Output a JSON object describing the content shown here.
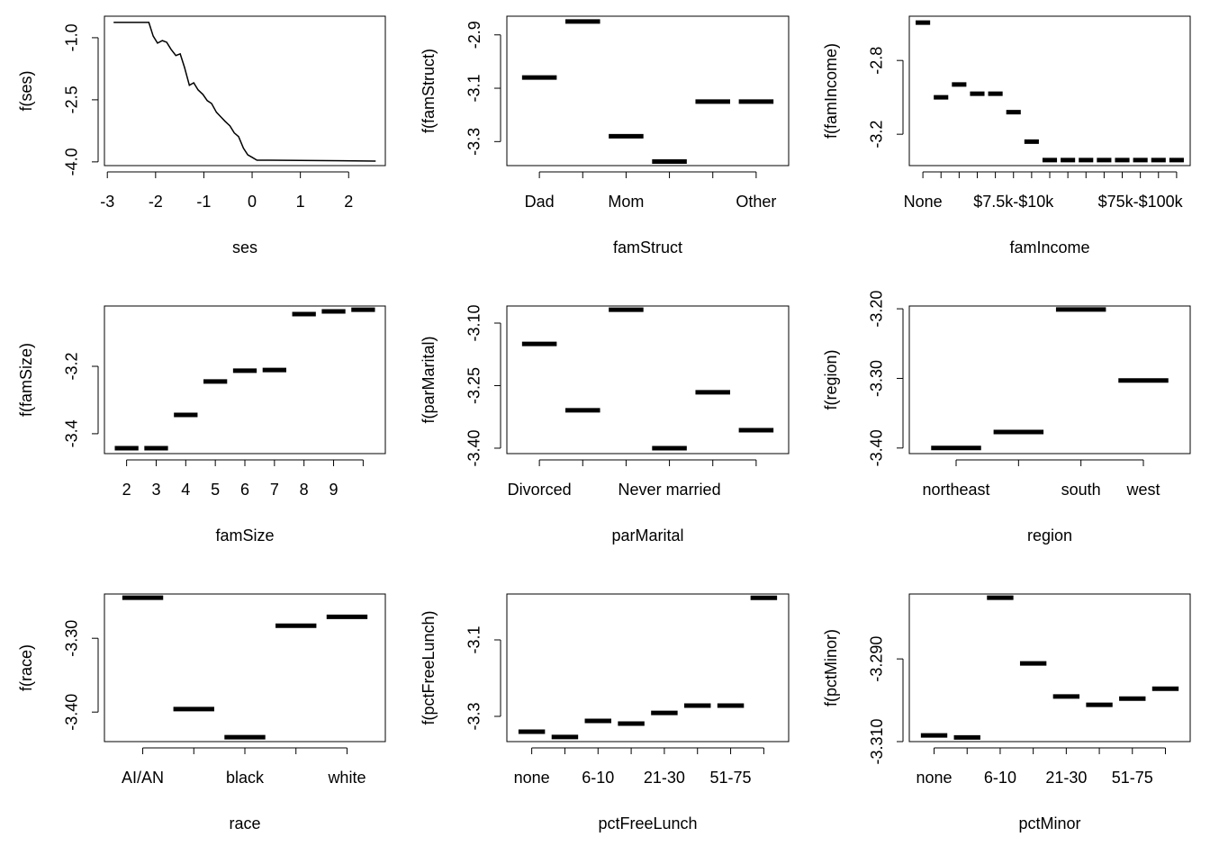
{
  "chart_data": [
    {
      "type": "line",
      "ylabel": "f(ses)",
      "xlabel": "ses",
      "xlim": [
        -3.06,
        2.76
      ],
      "xticks": [
        -3,
        -2,
        -1,
        0,
        1,
        2
      ],
      "ylim": [
        -4.09,
        -0.48
      ],
      "yticks": [
        {
          "value": -1,
          "label": "-1.0"
        },
        {
          "value": -2.5,
          "label": "-2.5"
        },
        {
          "value": -4,
          "label": "-4.0"
        }
      ],
      "color": "#000000",
      "x": [
        -2.87,
        -2.14,
        -2.05,
        -1.96,
        -1.86,
        -1.77,
        -1.68,
        -1.58,
        -1.49,
        -1.4,
        -1.3,
        -1.21,
        -1.12,
        -1.02,
        -0.93,
        -0.84,
        -0.74,
        -0.65,
        -0.56,
        -0.46,
        -0.37,
        -0.28,
        -0.18,
        -0.09,
        0.0,
        0.1,
        0.38,
        2.56
      ],
      "values": [
        -0.63,
        -0.63,
        -0.96,
        -1.13,
        -1.07,
        -1.11,
        -1.28,
        -1.43,
        -1.39,
        -1.72,
        -2.15,
        -2.09,
        -2.26,
        -2.37,
        -2.52,
        -2.59,
        -2.8,
        -2.91,
        -3.02,
        -3.13,
        -3.3,
        -3.39,
        -3.67,
        -3.83,
        -3.89,
        -3.96,
        -3.96,
        -3.98
      ]
    },
    {
      "type": "segment",
      "ylabel": "f(famStruct)",
      "xlabel": "famStruct",
      "ylim": [
        -3.39,
        -2.83
      ],
      "yticks": [
        -2.9,
        -3.1,
        -3.3
      ],
      "color": "#000000",
      "categories": [
        "Dad",
        null,
        "Mom",
        null,
        null,
        "Other"
      ],
      "values": [
        -3.06,
        -2.85,
        -3.28,
        -3.375,
        -3.15,
        -3.15
      ]
    },
    {
      "type": "segment",
      "ylabel": "f(famIncome)",
      "xlabel": "famIncome",
      "ylim": [
        -3.37,
        -2.56
      ],
      "yticks": [
        -2.8,
        -3.2
      ],
      "color": "#000000",
      "categories": [
        "None",
        null,
        null,
        null,
        null,
        "$7.5k-$10k",
        null,
        null,
        null,
        null,
        null,
        null,
        "$75k-$100k",
        null,
        null
      ],
      "values": [
        -2.595,
        -3.0,
        -2.93,
        -2.98,
        -2.98,
        -3.08,
        -3.24,
        -3.34,
        -3.34,
        -3.34,
        -3.34,
        -3.34,
        -3.34,
        -3.34,
        -3.34
      ]
    },
    {
      "type": "segment",
      "ylabel": "f(famSize)",
      "xlabel": "famSize",
      "ylim": [
        -3.459,
        -3.021
      ],
      "yticks": [
        -3.2,
        -3.4
      ],
      "color": "#000000",
      "categories": [
        "2",
        "3",
        "4",
        "5",
        "6",
        "7",
        "8",
        "9",
        null
      ],
      "values": [
        -3.443,
        -3.443,
        -3.344,
        -3.245,
        -3.213,
        -3.211,
        -3.045,
        -3.037,
        -3.032
      ]
    },
    {
      "type": "segment",
      "ylabel": "f(parMarital)",
      "xlabel": "parMarital",
      "ylim": [
        -3.413,
        -3.059
      ],
      "yticks": [
        {
          "value": -3.1,
          "label": "-3.10"
        },
        -3.25,
        {
          "value": -3.4,
          "label": "-3.40"
        }
      ],
      "color": "#000000",
      "categories": [
        "Divorced",
        null,
        null,
        "Never married",
        null,
        null
      ],
      "values": [
        -3.15,
        -3.309,
        -3.068,
        -3.4,
        -3.266,
        -3.357
      ]
    },
    {
      "type": "segment",
      "ylabel": "f(region)",
      "xlabel": "region",
      "ylim": [
        -3.408,
        -3.196
      ],
      "yticks": [
        {
          "value": -3.2,
          "label": "-3.20"
        },
        {
          "value": -3.3,
          "label": "-3.30"
        },
        {
          "value": -3.4,
          "label": "-3.40"
        }
      ],
      "color": "#000000",
      "categories": [
        "northeast",
        null,
        "south",
        "west"
      ],
      "values": [
        -3.4,
        -3.377,
        -3.201,
        -3.303
      ]
    },
    {
      "type": "segment",
      "ylabel": "f(race)",
      "xlabel": "race",
      "ylim": [
        -3.44,
        -3.24
      ],
      "yticks": [
        {
          "value": -3.3,
          "label": "-3.30"
        },
        {
          "value": -3.4,
          "label": "-3.40"
        }
      ],
      "color": "#000000",
      "categories": [
        "AI/AN",
        null,
        "black",
        null,
        "white"
      ],
      "values": [
        -3.245,
        -3.396,
        -3.434,
        -3.283,
        -3.271
      ]
    },
    {
      "type": "segment",
      "ylabel": "f(pctFreeLunch)",
      "xlabel": "pctFreeLunch",
      "ylim": [
        -3.366,
        -2.98
      ],
      "yticks": [
        -3.1,
        -3.3
      ],
      "color": "#000000",
      "categories": [
        "none",
        null,
        "6-10",
        null,
        "21-30",
        null,
        "51-75",
        null
      ],
      "values": [
        -3.34,
        -3.354,
        -3.312,
        -3.319,
        -3.291,
        -3.272,
        -3.272,
        -2.99
      ]
    },
    {
      "type": "segment",
      "ylabel": "f(pctMinor)",
      "xlabel": "pctMinor",
      "ylim": [
        -3.31,
        -3.2743
      ],
      "yticks": [
        {
          "value": -3.29,
          "label": "-3.290"
        },
        {
          "value": -3.31,
          "label": "-3.310"
        }
      ],
      "color": "#000000",
      "categories": [
        "none",
        null,
        "6-10",
        null,
        "21-30",
        null,
        "51-75",
        null
      ],
      "values": [
        -3.3085,
        -3.309,
        -3.2752,
        -3.2911,
        -3.2991,
        -3.3011,
        -3.2996,
        -3.2972
      ]
    }
  ]
}
